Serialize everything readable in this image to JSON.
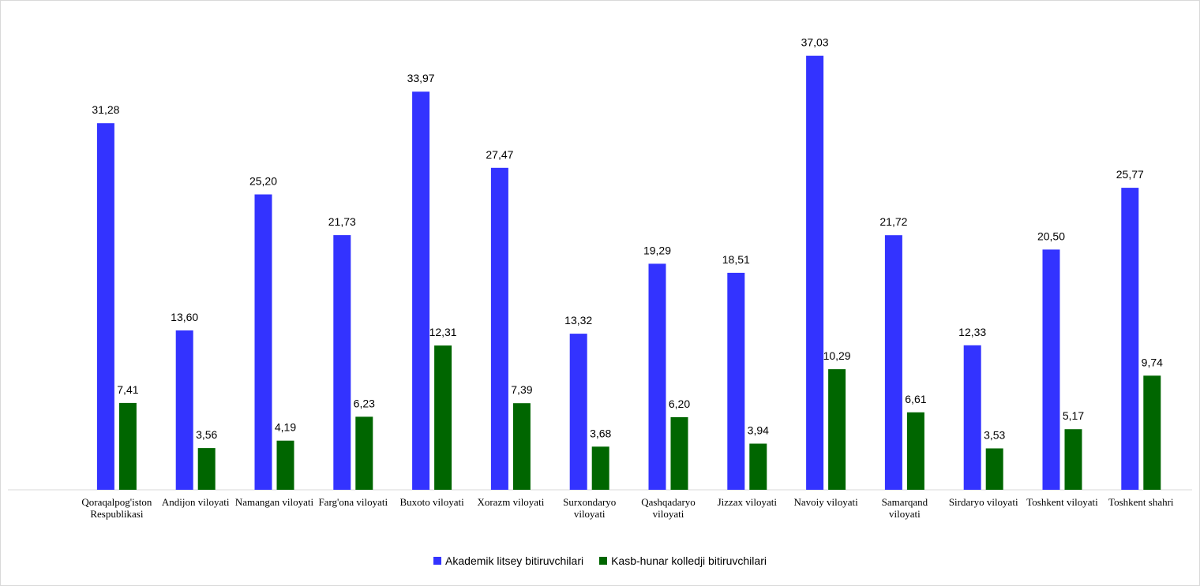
{
  "chart_data": {
    "type": "bar",
    "categories": [
      "Qoraqalpog'iston Respublikasi",
      "Andijon viloyati",
      "Namangan viloyati",
      "Farg'ona viloyati",
      "Buxoto viloyati",
      "Xorazm viloyati",
      "Surxondaryo viloyati",
      "Qashqadaryo viloyati",
      "Jizzax viloyati",
      "Navoiy viloyati",
      "Samarqand viloyati",
      "Sirdaryo viloyati",
      "Toshkent viloyati",
      "Toshkent shahri"
    ],
    "series": [
      {
        "name": "Akademik litsey bitiruvchilari",
        "color": "#3333ff",
        "values": [
          31.28,
          13.6,
          25.2,
          21.73,
          33.97,
          27.47,
          13.32,
          19.29,
          18.51,
          37.03,
          21.72,
          12.33,
          20.5,
          25.77
        ],
        "labels": [
          "31,28",
          "13,60",
          "25,20",
          "21,73",
          "33,97",
          "27,47",
          "13,32",
          "19,29",
          "18,51",
          "37,03",
          "21,72",
          "12,33",
          "20,50",
          "25,77"
        ]
      },
      {
        "name": "Kasb-hunar kolledji bitiruvchilari",
        "color": "#006600",
        "values": [
          7.41,
          3.56,
          4.19,
          6.23,
          12.31,
          7.39,
          3.68,
          6.2,
          3.94,
          10.29,
          6.61,
          3.53,
          5.17,
          9.74
        ],
        "labels": [
          "7,41",
          "3,56",
          "4,19",
          "6,23",
          "12,31",
          "7,39",
          "3,68",
          "6,20",
          "3,94",
          "10,29",
          "6,61",
          "3,53",
          "5,17",
          "9,74"
        ]
      }
    ],
    "title": "",
    "xlabel": "",
    "ylabel": "",
    "ylim": [
      0,
      40
    ],
    "grid": false,
    "legend_position": "bottom"
  }
}
